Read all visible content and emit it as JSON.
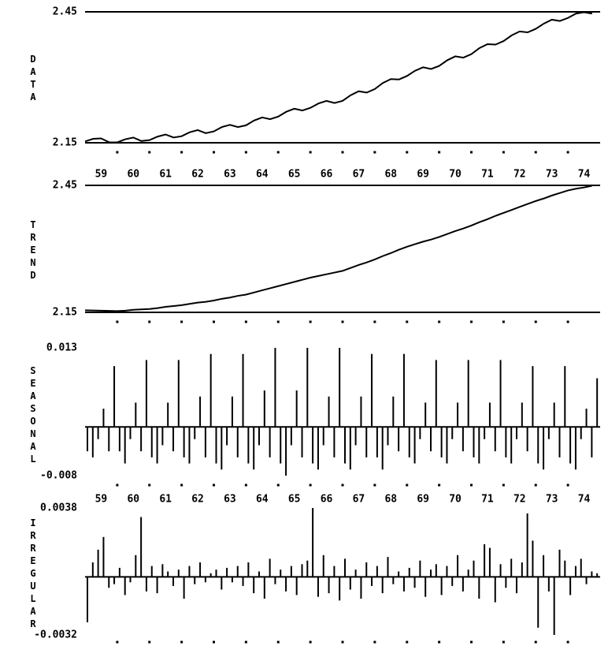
{
  "chart_data": [
    {
      "type": "line",
      "ylabel": "DATA",
      "color": "#000000",
      "grid": true,
      "xlim": [
        1959,
        1975
      ],
      "xticks": [
        1960,
        1961,
        1962,
        1963,
        1964,
        1965,
        1966,
        1967,
        1968,
        1969,
        1970,
        1971,
        1972,
        1973,
        1974
      ],
      "categories": [
        "59",
        "60",
        "61",
        "62",
        "63",
        "64",
        "65",
        "66",
        "67",
        "68",
        "69",
        "70",
        "71",
        "72",
        "73",
        "74"
      ],
      "ylim": [
        2.15,
        2.45
      ],
      "yticks": [
        2.15,
        2.45
      ],
      "x": [
        1959,
        1959.25,
        1959.5,
        1959.75,
        1960,
        1960.25,
        1960.5,
        1960.75,
        1961,
        1961.25,
        1961.5,
        1961.75,
        1962,
        1962.25,
        1962.5,
        1962.75,
        1963,
        1963.25,
        1963.5,
        1963.75,
        1964,
        1964.25,
        1964.5,
        1964.75,
        1965,
        1965.25,
        1965.5,
        1965.75,
        1966,
        1966.25,
        1966.5,
        1966.75,
        1967,
        1967.25,
        1967.5,
        1967.75,
        1968,
        1968.25,
        1968.5,
        1968.75,
        1969,
        1969.25,
        1969.5,
        1969.75,
        1970,
        1970.25,
        1970.5,
        1970.75,
        1971,
        1971.25,
        1971.5,
        1971.75,
        1972,
        1972.25,
        1972.5,
        1972.75,
        1973,
        1973.25,
        1973.5,
        1973.75,
        1974,
        1974.25,
        1974.5,
        1974.75
      ],
      "values": [
        2.153,
        2.159,
        2.16,
        2.151,
        2.151,
        2.158,
        2.162,
        2.154,
        2.156,
        2.164,
        2.169,
        2.162,
        2.165,
        2.174,
        2.179,
        2.172,
        2.176,
        2.186,
        2.191,
        2.186,
        2.19,
        2.201,
        2.208,
        2.204,
        2.21,
        2.221,
        2.228,
        2.224,
        2.23,
        2.24,
        2.246,
        2.241,
        2.246,
        2.259,
        2.268,
        2.265,
        2.273,
        2.287,
        2.296,
        2.295,
        2.303,
        2.315,
        2.323,
        2.319,
        2.326,
        2.339,
        2.348,
        2.345,
        2.353,
        2.367,
        2.376,
        2.375,
        2.383,
        2.396,
        2.405,
        2.403,
        2.411,
        2.423,
        2.432,
        2.429,
        2.436,
        2.446,
        2.449,
        2.446
      ]
    },
    {
      "type": "line",
      "ylabel": "TREND",
      "color": "#000000",
      "grid": true,
      "xlim": [
        1959,
        1975
      ],
      "xticks": [
        1960,
        1961,
        1962,
        1963,
        1964,
        1965,
        1966,
        1967,
        1968,
        1969,
        1970,
        1971,
        1972,
        1973,
        1974
      ],
      "ylim": [
        2.15,
        2.45
      ],
      "yticks": [
        2.15,
        2.45
      ],
      "x": [
        1959,
        1959.25,
        1959.5,
        1959.75,
        1960,
        1960.25,
        1960.5,
        1960.75,
        1961,
        1961.25,
        1961.5,
        1961.75,
        1962,
        1962.25,
        1962.5,
        1962.75,
        1963,
        1963.25,
        1963.5,
        1963.75,
        1964,
        1964.25,
        1964.5,
        1964.75,
        1965,
        1965.25,
        1965.5,
        1965.75,
        1966,
        1966.25,
        1966.5,
        1966.75,
        1967,
        1967.25,
        1967.5,
        1967.75,
        1968,
        1968.25,
        1968.5,
        1968.75,
        1969,
        1969.25,
        1969.5,
        1969.75,
        1970,
        1970.25,
        1970.5,
        1970.75,
        1971,
        1971.25,
        1971.5,
        1971.75,
        1972,
        1972.25,
        1972.5,
        1972.75,
        1973,
        1973.25,
        1973.5,
        1973.75,
        1974,
        1974.25,
        1974.5,
        1974.75
      ],
      "values": [
        2.155,
        2.1545,
        2.154,
        2.1535,
        2.153,
        2.154,
        2.156,
        2.157,
        2.158,
        2.16,
        2.163,
        2.165,
        2.167,
        2.17,
        2.173,
        2.175,
        2.178,
        2.182,
        2.185,
        2.189,
        2.192,
        2.197,
        2.202,
        2.207,
        2.212,
        2.217,
        2.222,
        2.227,
        2.232,
        2.236,
        2.24,
        2.244,
        2.248,
        2.255,
        2.262,
        2.268,
        2.275,
        2.283,
        2.29,
        2.298,
        2.305,
        2.311,
        2.317,
        2.322,
        2.328,
        2.335,
        2.342,
        2.348,
        2.355,
        2.363,
        2.37,
        2.378,
        2.385,
        2.392,
        2.399,
        2.406,
        2.413,
        2.419,
        2.426,
        2.432,
        2.438,
        2.442,
        2.445,
        2.449
      ]
    },
    {
      "type": "bar",
      "ylabel": "SEASONAL",
      "color": "#000000",
      "grid": false,
      "xlim": [
        1959,
        1975
      ],
      "xticks": [
        1960,
        1961,
        1962,
        1963,
        1964,
        1965,
        1966,
        1967,
        1968,
        1969,
        1970,
        1971,
        1972,
        1973,
        1974
      ],
      "categories": [
        "59",
        "60",
        "61",
        "62",
        "63",
        "64",
        "65",
        "66",
        "67",
        "68",
        "69",
        "70",
        "71",
        "72",
        "73",
        "74"
      ],
      "ylim": [
        -0.008,
        0.013
      ],
      "yticks": [
        -0.008,
        0.013
      ],
      "x": [
        1959,
        1959.167,
        1959.333,
        1959.5,
        1959.667,
        1959.833,
        1960,
        1960.167,
        1960.333,
        1960.5,
        1960.667,
        1960.833,
        1961,
        1961.167,
        1961.333,
        1961.5,
        1961.667,
        1961.833,
        1962,
        1962.167,
        1962.333,
        1962.5,
        1962.667,
        1962.833,
        1963,
        1963.167,
        1963.333,
        1963.5,
        1963.667,
        1963.833,
        1964,
        1964.167,
        1964.333,
        1964.5,
        1964.667,
        1964.833,
        1965,
        1965.167,
        1965.333,
        1965.5,
        1965.667,
        1965.833,
        1966,
        1966.167,
        1966.333,
        1966.5,
        1966.667,
        1966.833,
        1967,
        1967.167,
        1967.333,
        1967.5,
        1967.667,
        1967.833,
        1968,
        1968.167,
        1968.333,
        1968.5,
        1968.667,
        1968.833,
        1969,
        1969.167,
        1969.333,
        1969.5,
        1969.667,
        1969.833,
        1970,
        1970.167,
        1970.333,
        1970.5,
        1970.667,
        1970.833,
        1971,
        1971.167,
        1971.333,
        1971.5,
        1971.667,
        1971.833,
        1972,
        1972.167,
        1972.333,
        1972.5,
        1972.667,
        1972.833,
        1973,
        1973.167,
        1973.333,
        1973.5,
        1973.667,
        1973.833,
        1974,
        1974.167,
        1974.333,
        1974.5,
        1974.667,
        1974.833
      ],
      "values": [
        -0.004,
        -0.005,
        -0.002,
        0.003,
        -0.004,
        0.01,
        -0.004,
        -0.006,
        -0.002,
        0.004,
        -0.004,
        0.011,
        -0.005,
        -0.006,
        -0.003,
        0.004,
        -0.004,
        0.011,
        -0.005,
        -0.006,
        -0.002,
        0.005,
        -0.005,
        0.012,
        -0.006,
        -0.007,
        -0.003,
        0.005,
        -0.005,
        0.012,
        -0.006,
        -0.007,
        -0.003,
        0.006,
        -0.005,
        0.013,
        -0.006,
        -0.008,
        -0.003,
        0.006,
        -0.005,
        0.013,
        -0.006,
        -0.007,
        -0.003,
        0.005,
        -0.005,
        0.013,
        -0.006,
        -0.007,
        -0.003,
        0.005,
        -0.005,
        0.012,
        -0.005,
        -0.007,
        -0.003,
        0.005,
        -0.004,
        0.012,
        -0.005,
        -0.006,
        -0.002,
        0.004,
        -0.004,
        0.011,
        -0.005,
        -0.006,
        -0.002,
        0.004,
        -0.004,
        0.011,
        -0.005,
        -0.006,
        -0.002,
        0.004,
        -0.004,
        0.011,
        -0.005,
        -0.006,
        -0.002,
        0.004,
        -0.004,
        0.01,
        -0.006,
        -0.007,
        -0.002,
        0.004,
        -0.005,
        0.01,
        -0.006,
        -0.007,
        -0.002,
        0.003,
        -0.005,
        0.008
      ]
    },
    {
      "type": "bar",
      "ylabel": "IRREGULAR",
      "color": "#000000",
      "grid": false,
      "xlim": [
        1959,
        1975
      ],
      "xticks": [
        1960,
        1961,
        1962,
        1963,
        1964,
        1965,
        1966,
        1967,
        1968,
        1969,
        1970,
        1971,
        1972,
        1973,
        1974
      ],
      "ylim": [
        -0.0032,
        0.0038
      ],
      "yticks": [
        -0.0032,
        0.0038
      ],
      "x": [
        1959,
        1959.167,
        1959.333,
        1959.5,
        1959.667,
        1959.833,
        1960,
        1960.167,
        1960.333,
        1960.5,
        1960.667,
        1960.833,
        1961,
        1961.167,
        1961.333,
        1961.5,
        1961.667,
        1961.833,
        1962,
        1962.167,
        1962.333,
        1962.5,
        1962.667,
        1962.833,
        1963,
        1963.167,
        1963.333,
        1963.5,
        1963.667,
        1963.833,
        1964,
        1964.167,
        1964.333,
        1964.5,
        1964.667,
        1964.833,
        1965,
        1965.167,
        1965.333,
        1965.5,
        1965.667,
        1965.833,
        1966,
        1966.167,
        1966.333,
        1966.5,
        1966.667,
        1966.833,
        1967,
        1967.167,
        1967.333,
        1967.5,
        1967.667,
        1967.833,
        1968,
        1968.167,
        1968.333,
        1968.5,
        1968.667,
        1968.833,
        1969,
        1969.167,
        1969.333,
        1969.5,
        1969.667,
        1969.833,
        1970,
        1970.167,
        1970.333,
        1970.5,
        1970.667,
        1970.833,
        1971,
        1971.167,
        1971.333,
        1971.5,
        1971.667,
        1971.833,
        1972,
        1972.167,
        1972.333,
        1972.5,
        1972.667,
        1972.833,
        1973,
        1973.167,
        1973.333,
        1973.5,
        1973.667,
        1973.833,
        1974,
        1974.167,
        1974.333,
        1974.5,
        1974.667,
        1974.833
      ],
      "values": [
        -0.0025,
        0.0008,
        0.0015,
        0.0022,
        -0.0006,
        -0.0004,
        0.0005,
        -0.001,
        -0.0003,
        0.0012,
        0.0033,
        -0.0008,
        0.0006,
        -0.0009,
        0.0007,
        0.0003,
        -0.0005,
        0.0004,
        -0.0012,
        0.0006,
        -0.0004,
        0.0008,
        -0.0003,
        0.0002,
        0.0004,
        -0.0007,
        0.0005,
        -0.0003,
        0.0006,
        -0.0005,
        0.0008,
        -0.0009,
        0.0003,
        -0.0012,
        0.001,
        -0.0004,
        0.0004,
        -0.0008,
        0.0006,
        -0.001,
        0.0007,
        0.0009,
        0.0038,
        -0.0011,
        0.0012,
        -0.0009,
        0.0006,
        -0.0013,
        0.001,
        -0.0007,
        0.0004,
        -0.0012,
        0.0008,
        -0.0005,
        0.0006,
        -0.0009,
        0.0011,
        -0.0004,
        0.0003,
        -0.0008,
        0.0005,
        -0.0006,
        0.0009,
        -0.0011,
        0.0004,
        0.0007,
        -0.001,
        0.0006,
        -0.0005,
        0.0012,
        -0.0008,
        0.0004,
        0.0009,
        -0.0012,
        0.0018,
        0.0016,
        -0.0014,
        0.0007,
        -0.0006,
        0.001,
        -0.0009,
        0.0008,
        0.0035,
        0.002,
        -0.0028,
        0.0012,
        -0.0008,
        -0.0032,
        0.0015,
        0.0009,
        -0.001,
        0.0006,
        0.001,
        -0.0004,
        0.0003,
        0.0002
      ]
    }
  ]
}
